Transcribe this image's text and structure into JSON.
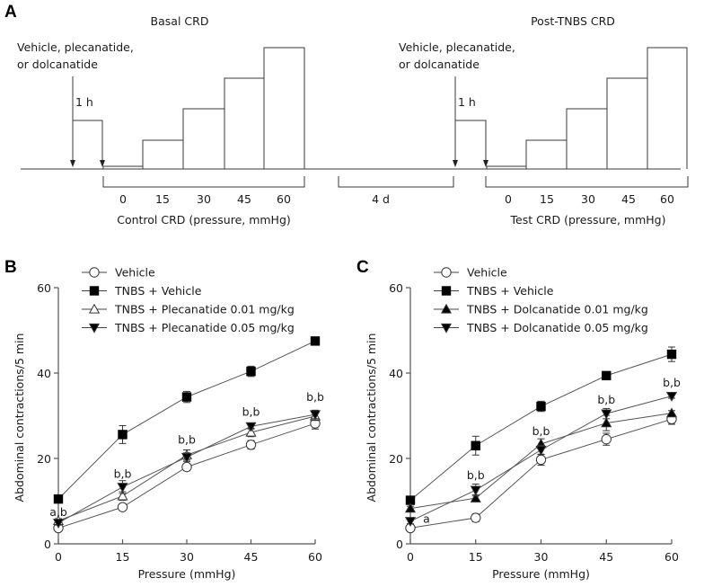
{
  "panel_a": {
    "label": "A",
    "basal": {
      "title": "Basal CRD",
      "drug_label_line1": "Vehicle, plecanatide,",
      "drug_label_line2": "or dolcanatide",
      "interval": "1 h",
      "pressures": [
        "0",
        "15",
        "30",
        "45",
        "60"
      ],
      "axis_label": "Control CRD (pressure, mmHg)"
    },
    "gap_label": "4 d",
    "post": {
      "title": "Post-TNBS CRD",
      "drug_label_line1": "Vehicle, plecanatide,",
      "drug_label_line2": "or dolcanatide",
      "interval": "1 h",
      "pressures": [
        "0",
        "15",
        "30",
        "45",
        "60"
      ],
      "axis_label": "Test CRD (pressure, mmHg)"
    }
  },
  "chart_data": [
    {
      "type": "line",
      "panel": "B",
      "title": "",
      "xlabel": "Pressure (mmHg)",
      "ylabel": "Abdominal contractions/5 min",
      "x": [
        0,
        15,
        30,
        45,
        60
      ],
      "xticks": [
        "0",
        "15",
        "30",
        "45",
        "60"
      ],
      "yticks": [
        "0",
        "20",
        "40",
        "60"
      ],
      "ylim": [
        0,
        60
      ],
      "legend_position": "top-left",
      "grid": false,
      "series": [
        {
          "name": "Vehicle",
          "marker": "circle-open",
          "values": [
            3.7,
            8.6,
            18.0,
            23.2,
            28.2
          ],
          "err": [
            0.6,
            0.7,
            0.8,
            1.0,
            1.3
          ]
        },
        {
          "name": "TNBS + Vehicle",
          "marker": "square-filled",
          "values": [
            10.5,
            25.6,
            34.4,
            40.4,
            47.5
          ],
          "err": [
            0.6,
            2.1,
            1.3,
            1.2,
            0.6
          ]
        },
        {
          "name": "TNBS + Plecanatide 0.01 mg/kg",
          "marker": "triangle-up-open",
          "values": [
            5.4,
            11.2,
            20.8,
            26.1,
            29.9
          ],
          "err": [
            0.5,
            1.0,
            1.2,
            1.0,
            1.0
          ]
        },
        {
          "name": "TNBS + Plecanatide 0.05 mg/kg",
          "marker": "triangle-down-filled",
          "values": [
            4.9,
            13.3,
            20.3,
            27.5,
            30.3
          ],
          "err": [
            0.5,
            1.5,
            1.0,
            0.6,
            1.0
          ]
        }
      ],
      "annotations": [
        {
          "x": 0,
          "y": 6.5,
          "text": "a,b"
        },
        {
          "x": 15,
          "y": 15.5,
          "text": "b,b"
        },
        {
          "x": 30,
          "y": 23.5,
          "text": "b,b"
        },
        {
          "x": 45,
          "y": 30.0,
          "text": "b,b"
        },
        {
          "x": 60,
          "y": 33.5,
          "text": "b,b"
        }
      ]
    },
    {
      "type": "line",
      "panel": "C",
      "title": "",
      "xlabel": "Pressure (mmHg)",
      "ylabel": "Abdominal contractions/5 min",
      "x": [
        0,
        15,
        30,
        45,
        60
      ],
      "xticks": [
        "0",
        "15",
        "30",
        "45",
        "60"
      ],
      "yticks": [
        "0",
        "20",
        "40",
        "60"
      ],
      "ylim": [
        0,
        60
      ],
      "legend_position": "top-left",
      "grid": false,
      "series": [
        {
          "name": "Vehicle",
          "marker": "circle-open",
          "values": [
            3.7,
            6.1,
            19.7,
            24.5,
            29.2
          ],
          "err": [
            0.6,
            0.9,
            1.3,
            1.4,
            1.2
          ]
        },
        {
          "name": "TNBS + Vehicle",
          "marker": "square-filled",
          "values": [
            10.2,
            23.0,
            32.2,
            39.4,
            44.4
          ],
          "err": [
            0.5,
            2.2,
            1.2,
            0.5,
            1.7
          ]
        },
        {
          "name": "TNBS + Dolcanatide 0.01 mg/kg",
          "marker": "triangle-up-filled",
          "values": [
            8.3,
            10.7,
            23.4,
            28.3,
            30.6
          ],
          "err": [
            0.5,
            0.8,
            1.2,
            1.8,
            0.6
          ]
        },
        {
          "name": "TNBS + Dolcanatide 0.05 mg/kg",
          "marker": "triangle-down-filled",
          "values": [
            5.3,
            12.6,
            22.0,
            30.5,
            34.6
          ],
          "err": [
            0.6,
            1.4,
            1.1,
            1.2,
            0.5
          ]
        }
      ],
      "annotations": [
        {
          "x": 3.7,
          "y": 5.0,
          "text": "a"
        },
        {
          "x": 15,
          "y": 15.2,
          "text": "b,b"
        },
        {
          "x": 30,
          "y": 25.5,
          "text": "b,b"
        },
        {
          "x": 45,
          "y": 32.8,
          "text": "b,b"
        },
        {
          "x": 60,
          "y": 36.8,
          "text": "b,b"
        }
      ]
    }
  ]
}
